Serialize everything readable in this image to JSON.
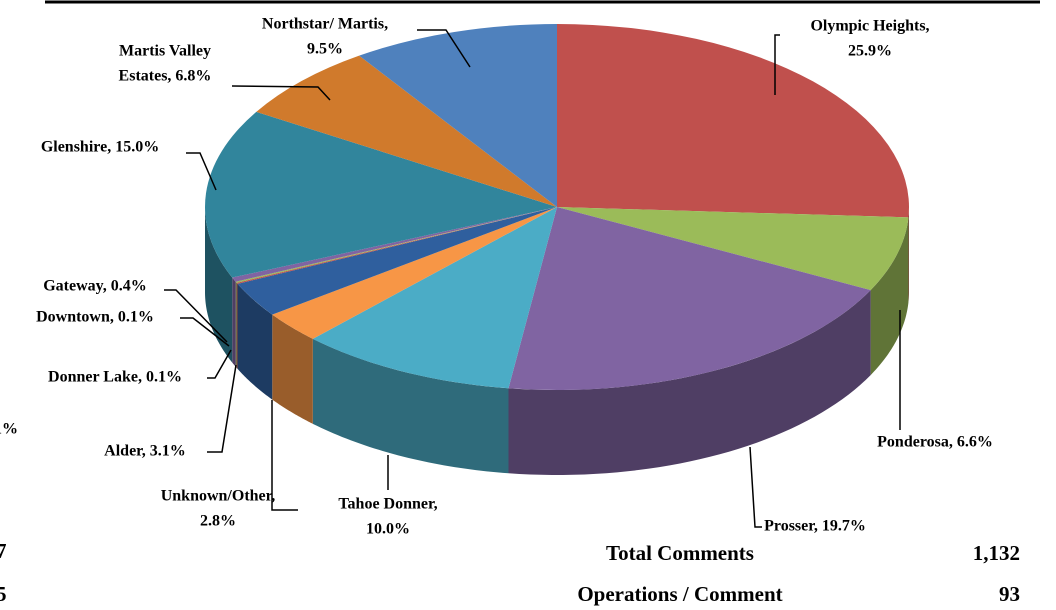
{
  "chart_data": {
    "type": "pie",
    "categories": [
      [
        "Olympic Heights,",
        "25.9%"
      ],
      [
        "Ponderosa, 6.6%"
      ],
      [
        "Prosser, 19.7%"
      ],
      [
        "Tahoe Donner,",
        "10.0%"
      ],
      [
        "Unknown/Other,",
        "2.8%"
      ],
      [
        "Alder, 3.1%"
      ],
      [
        "Donner Lake, 0.1%"
      ],
      [
        "Downtown, 0.1%"
      ],
      [
        "Gateway, 0.4%"
      ],
      [
        "Glenshire, 15.0%"
      ],
      [
        "Martis Valley",
        "Estates, 6.8%"
      ],
      [
        "Northstar/ Martis,",
        "9.5%"
      ]
    ],
    "values": [
      25.9,
      6.6,
      19.7,
      10.0,
      2.8,
      3.1,
      0.1,
      0.1,
      0.4,
      15.0,
      6.8,
      9.5
    ],
    "colors": [
      "#c0504d",
      "#9bbb59",
      "#8064a2",
      "#4bacc6",
      "#f79646",
      "#2f5f9e",
      "#c0504d",
      "#9bbb59",
      "#8064a2",
      "#31859c",
      "#d07a2c",
      "#4f81bd"
    ],
    "summary": [
      [
        "Total Comments",
        "1,132"
      ],
      [
        "Operations / Comment",
        "93"
      ]
    ],
    "fragments": [
      "1%",
      "7",
      "5"
    ]
  }
}
